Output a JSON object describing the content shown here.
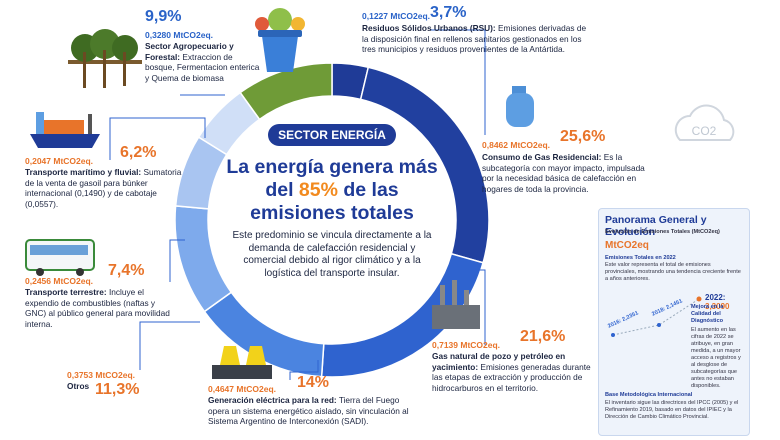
{
  "chart_data": {
    "type": "pie",
    "categories": [
      "Residuos Sólidos Urbanos (RSU):",
      "Consumo de Gas Residencial:",
      "Gas natural de pozo y petróleo en yacimiento:",
      "Generación eléctrica para la red:",
      "Otros",
      "Transporte terrestre:",
      "Transporte marítimo y fluvial:",
      "Sector Agropecuario y Forestal:"
    ],
    "values": [
      3.7,
      25.6,
      21.6,
      14,
      11.3,
      7.4,
      6.2,
      9.9
    ],
    "value_labels": [
      "3,7%",
      "25,6%",
      "21,6%",
      "14%",
      "11,3%",
      "7,4%",
      "6,2%",
      "9,9%"
    ],
    "amounts": [
      "0,1227 MtCO2eq.",
      "0,8462 MtCO2eq.",
      "0,7139 MtCO2eq.",
      "0,4647 MtCO2eq.",
      "0,3753 MtCO2eq.",
      "0,2456 MtCO2eq.",
      "0,2047 MtCO2eq.",
      "0,3280 MtCO2eq."
    ],
    "descriptions": [
      "Emisiones derivadas de la disposición final en rellenos sanitarios gestionados en los tres municipios y residuos provenientes de la Antártida.",
      "Es la subcategoría con mayor impacto, impulsada por la necesidad básica de calefacción en hogares de toda la provincia.",
      "Emisiones generadas durante las etapas de extracción y producción de hidrocarburos en el territorio.",
      "Tierra del Fuego opera un sistema energético aislado, sin vinculación al Sistema Argentino de Interconexión (SADI).",
      null,
      "Incluye el expendio de combustibles (naftas y GNC) al público general para movilidad interna.",
      "Sumatoria de la venta de gasoil para búnker internacional (0,1490) y de cabotaje (0,0557).",
      "Extraccion de bosque, Fermentacion enterica y Quema de biomasa"
    ],
    "colors": [
      "#1f3b97",
      "#21409f",
      "#2f63cf",
      "#4b84e0",
      "#7eaaec",
      "#a9c5f1",
      "#d0dff7",
      "#6f9b37"
    ]
  },
  "center": {
    "badge": "SECTOR ENERGÍA",
    "headline_before": "La energía genera más del",
    "headline_highlight": "85%",
    "headline_after": "de las emisiones totales",
    "body": "Este predominio se vincula directamente a la demanda de calefacción residencial y comercial debido al rigor climático y a la logística del transporte insular."
  },
  "panel": {
    "title": "Panorama General y Evolución",
    "subtitle": "Evolución de Emisiones Totales (MtCO2eq)",
    "unit": "MtCO2eq",
    "section": "Emisiones Totales en 2022",
    "section_text": "Este valor representa el total de emisiones provinciales, mostrando una tendencia creciente frente a años anteriores.",
    "point_2016": "2016: 2,2351",
    "point_2018": "2018: 2,1451",
    "point_2022_label": "2022:",
    "point_2022_value": "3,3090",
    "note_title": "Mejora en la Calidad del Diagnóstico",
    "note_text": "El aumento en las cifras de 2022 se atribuye, en gran medida, a un mayor acceso a registros y al desglose de subcategorías que antes no estaban disponibles.",
    "method_title": "Base Metodológica Internacional",
    "method_text": "El inventario sigue las directrices del IPCC (2005) y el Refinamiento 2019, basado en datos del IPIEC y la Dirección de Cambio Climático Provincial."
  },
  "icon_text": "CO2"
}
